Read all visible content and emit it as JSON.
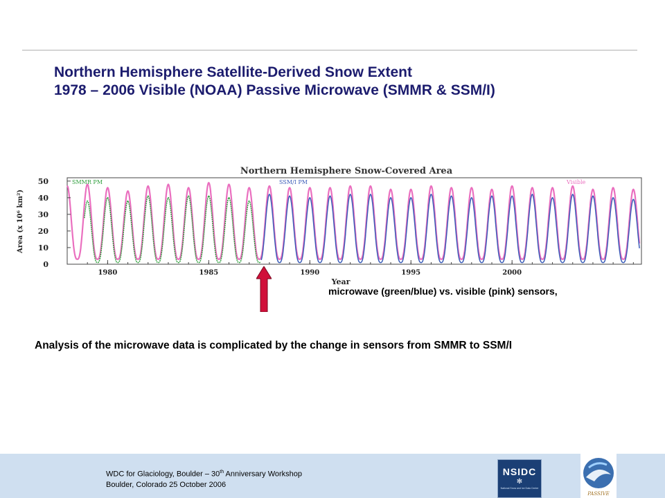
{
  "slide": {
    "title_line1": "Northern Hemisphere Satellite-Derived Snow Extent",
    "title_line2": "1978 – 2006 Visible  (NOAA) Passive Microwave (SMMR & SSM/I)",
    "caption": "microwave (green/blue) vs. visible (pink) sensors,",
    "analysis": "Analysis of the microwave data is complicated by the change in sensors from SMMR to SSM/I",
    "arrow_color": "#d0103a"
  },
  "footer": {
    "line1_pre": "WDC for Glaciology, Boulder – 30",
    "line1_sup": "th",
    "line1_post": " Anniversary Workshop",
    "line2": "Boulder, Colorado 25 October 2006",
    "nsidc_logo_text": "NSIDC",
    "nsidc_logo_small": "National Snow and Ice Data Center",
    "passive_logo_text": "PASSIVE",
    "bg_color": "#cfdff0"
  },
  "chart_data": {
    "type": "line",
    "title": "Northern Hemisphere Snow-Covered Area",
    "xlabel": "Year",
    "ylabel": "Area (x 10⁶ km²)",
    "xlim": [
      1978.0,
      2006.4
    ],
    "ylim": [
      0,
      52
    ],
    "xticks": [
      1980,
      1985,
      1990,
      1995,
      2000
    ],
    "yticks": [
      0,
      10,
      20,
      30,
      40,
      50
    ],
    "labels": {
      "smmr": "SMMR PM",
      "ssmi": "SSM/I PM",
      "visible": "Visible"
    },
    "grid": false,
    "series": [
      {
        "name": "SMMR PM",
        "color": "#2e9e3c",
        "x_range": [
          1978.85,
          1987.55
        ],
        "annual_peaks": [
          [
            1979,
            38
          ],
          [
            1980,
            40
          ],
          [
            1981,
            38
          ],
          [
            1982,
            41
          ],
          [
            1983,
            40
          ],
          [
            1984,
            41
          ],
          [
            1985,
            41
          ],
          [
            1986,
            40
          ],
          [
            1987,
            38
          ]
        ],
        "annual_min": 1
      },
      {
        "name": "SSM/I PM",
        "color": "#3a5cb8",
        "x_range": [
          1987.6,
          2006.3
        ],
        "annual_peaks": [
          [
            1988,
            42
          ],
          [
            1989,
            41
          ],
          [
            1990,
            40
          ],
          [
            1991,
            41
          ],
          [
            1992,
            42
          ],
          [
            1993,
            42
          ],
          [
            1994,
            40
          ],
          [
            1995,
            40
          ],
          [
            1996,
            42
          ],
          [
            1997,
            41
          ],
          [
            1998,
            40
          ],
          [
            1999,
            41
          ],
          [
            2000,
            41
          ],
          [
            2001,
            42
          ],
          [
            2002,
            40
          ],
          [
            2003,
            42
          ],
          [
            2004,
            41
          ],
          [
            2005,
            40
          ],
          [
            2006,
            39
          ]
        ],
        "annual_min": 1
      },
      {
        "name": "Visible",
        "color": "#ea6fbf",
        "x_range": [
          1978.0,
          2006.3
        ],
        "annual_peaks": [
          [
            1978,
            47
          ],
          [
            1979,
            48
          ],
          [
            1980,
            46
          ],
          [
            1981,
            44
          ],
          [
            1982,
            47
          ],
          [
            1983,
            48
          ],
          [
            1984,
            46
          ],
          [
            1985,
            49
          ],
          [
            1986,
            48
          ],
          [
            1987,
            46
          ],
          [
            1988,
            47
          ],
          [
            1989,
            46
          ],
          [
            1990,
            46
          ],
          [
            1991,
            46
          ],
          [
            1992,
            47
          ],
          [
            1993,
            47
          ],
          [
            1994,
            45
          ],
          [
            1995,
            45
          ],
          [
            1996,
            47
          ],
          [
            1997,
            46
          ],
          [
            1998,
            46
          ],
          [
            1999,
            45
          ],
          [
            2000,
            47
          ],
          [
            2001,
            46
          ],
          [
            2002,
            46
          ],
          [
            2003,
            47
          ],
          [
            2004,
            45
          ],
          [
            2005,
            46
          ],
          [
            2006,
            45
          ]
        ],
        "annual_min": 3
      }
    ]
  }
}
